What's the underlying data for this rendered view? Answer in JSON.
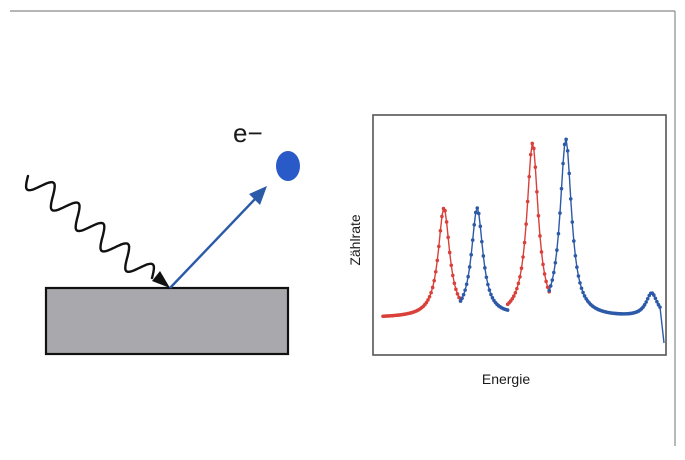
{
  "illustration": {
    "electron_label": "e−",
    "electron_color": "#2a5ac8",
    "arrow_color": "#2a5aa8",
    "wave_color": "#111111",
    "sample_fill": "#a9a9ad",
    "frame_color": "#8a8a8a"
  },
  "chart_data": {
    "type": "scatter",
    "xlabel": "Energie",
    "ylabel": "Zählrate",
    "grid": false,
    "legend": "none",
    "series": [
      {
        "color": "#d9403a",
        "peaks": [
          {
            "position": 0.22,
            "height": 0.55
          },
          {
            "position": 0.54,
            "height": 0.88
          }
        ]
      },
      {
        "color": "#2c5aa8",
        "peaks": [
          {
            "position": 0.34,
            "height": 0.55
          },
          {
            "position": 0.66,
            "height": 0.9
          },
          {
            "position": 0.97,
            "height": 0.12
          }
        ]
      }
    ]
  }
}
